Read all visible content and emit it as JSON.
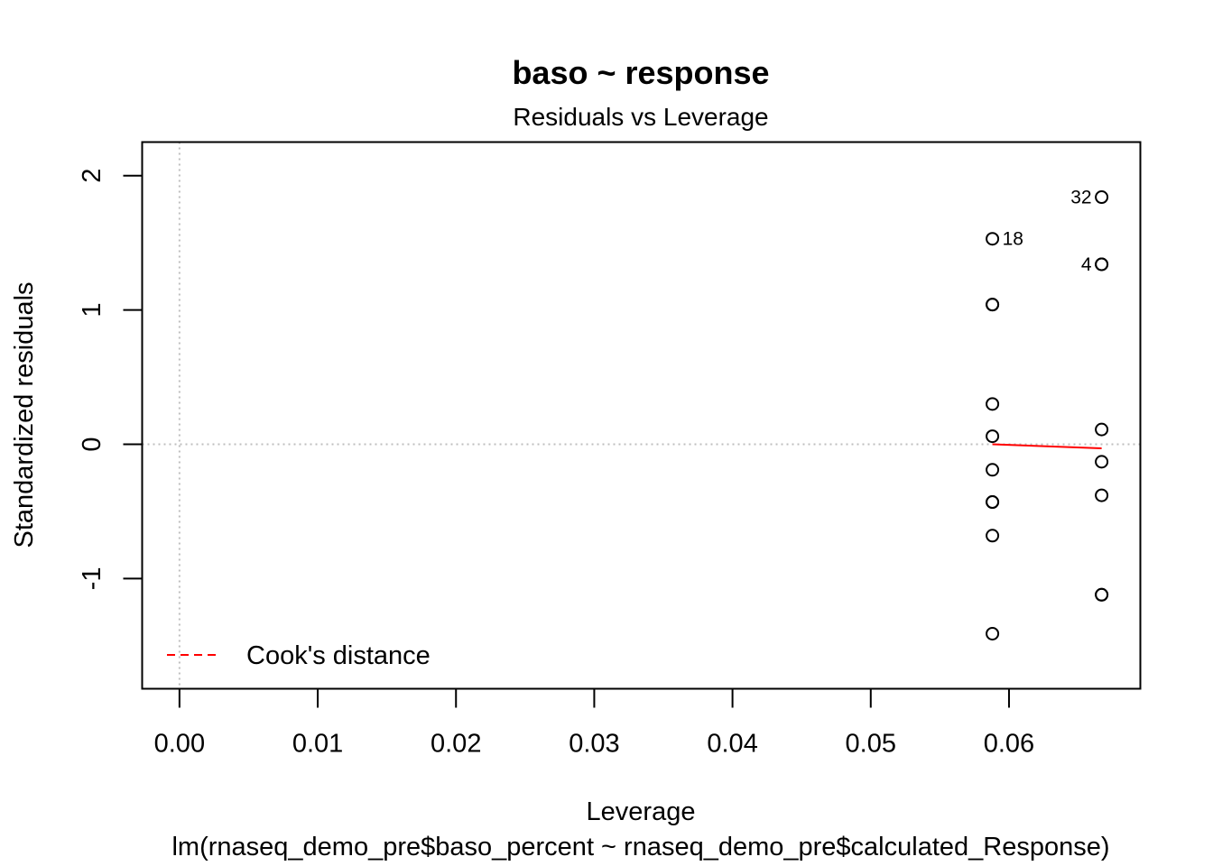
{
  "chart_data": {
    "type": "scatter",
    "title": "baso ~ response",
    "subtitle": "Residuals vs Leverage",
    "xlabel": "Leverage",
    "ylabel": "Standardized residuals",
    "caption": "lm(rnaseq_demo_pre$baso_percent ~ rnaseq_demo_pre$calculated_Response)",
    "xlim": [
      -0.0027,
      0.0695
    ],
    "ylim": [
      -1.82,
      2.25
    ],
    "x_ticks": [
      {
        "value": 0.0,
        "label": "0.00"
      },
      {
        "value": 0.01,
        "label": "0.01"
      },
      {
        "value": 0.02,
        "label": "0.02"
      },
      {
        "value": 0.03,
        "label": "0.03"
      },
      {
        "value": 0.04,
        "label": "0.04"
      },
      {
        "value": 0.05,
        "label": "0.05"
      },
      {
        "value": 0.06,
        "label": "0.06"
      }
    ],
    "y_ticks": [
      {
        "value": -1,
        "label": "-1"
      },
      {
        "value": 0,
        "label": "0"
      },
      {
        "value": 1,
        "label": "1"
      },
      {
        "value": 2,
        "label": "2"
      }
    ],
    "points": [
      {
        "x": 0.0588,
        "y": 1.53,
        "label": "18"
      },
      {
        "x": 0.0588,
        "y": 1.04,
        "label": ""
      },
      {
        "x": 0.0588,
        "y": 1.04,
        "label": ""
      },
      {
        "x": 0.0588,
        "y": 0.3,
        "label": ""
      },
      {
        "x": 0.0588,
        "y": 0.06,
        "label": ""
      },
      {
        "x": 0.0588,
        "y": -0.19,
        "label": ""
      },
      {
        "x": 0.0588,
        "y": -0.43,
        "label": ""
      },
      {
        "x": 0.0588,
        "y": -0.43,
        "label": ""
      },
      {
        "x": 0.0588,
        "y": -0.68,
        "label": ""
      },
      {
        "x": 0.0588,
        "y": -1.41,
        "label": ""
      },
      {
        "x": 0.0667,
        "y": 1.84,
        "label": "32"
      },
      {
        "x": 0.0667,
        "y": 1.34,
        "label": "4"
      },
      {
        "x": 0.0667,
        "y": 1.34,
        "label": ""
      },
      {
        "x": 0.0667,
        "y": 0.11,
        "label": ""
      },
      {
        "x": 0.0667,
        "y": -0.13,
        "label": ""
      },
      {
        "x": 0.0667,
        "y": -0.38,
        "label": ""
      },
      {
        "x": 0.0667,
        "y": -1.12,
        "label": ""
      },
      {
        "x": 0.0667,
        "y": -1.12,
        "label": ""
      }
    ],
    "smooth_line": {
      "x": [
        0.0588,
        0.0667
      ],
      "y": [
        0.0,
        -0.03
      ],
      "color": "#ff0000"
    },
    "reference_lines": {
      "h": 0,
      "v": 0,
      "color": "#bebebe"
    },
    "legend": {
      "position": "bottom-left",
      "entries": [
        {
          "name": "Cook's distance",
          "color": "#ff0000",
          "style": "dashed"
        }
      ]
    },
    "grid": false
  }
}
